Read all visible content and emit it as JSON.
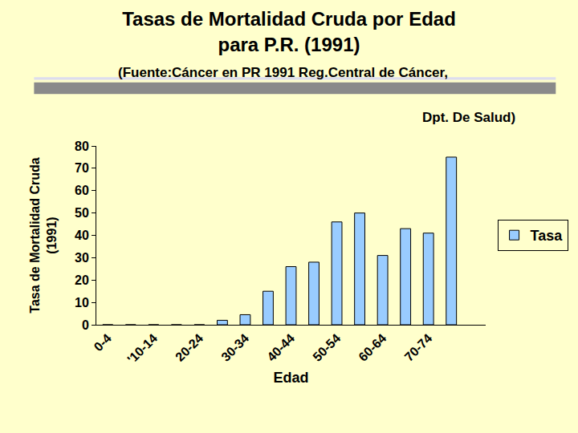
{
  "chart_data": {
    "type": "bar",
    "title": "Tasas de Mortalidad Cruda por Edad\npara P.R. (1991)",
    "subtitle": "(Fuente:Cáncer en PR 1991 Reg.Central de Cáncer,\nDpt. De Salud)",
    "x_label": "Edad",
    "y_label": "Tasa de Mortalidad Cruda\n(1991)",
    "categories": [
      "0-4",
      null,
      "'10-14",
      null,
      "20-24",
      null,
      "30-34",
      null,
      "40-44",
      null,
      "50-54",
      null,
      "60-64",
      null,
      "70-74",
      null,
      null
    ],
    "series": [
      {
        "name": "Tasa",
        "color": "#99CCFF",
        "values": [
          0,
          0,
          0,
          0,
          0,
          2,
          4.5,
          15,
          26,
          28,
          46,
          50,
          31,
          43,
          41,
          75,
          null
        ]
      }
    ],
    "ylim": [
      0,
      80
    ],
    "yticks": [
      0,
      10,
      20,
      30,
      40,
      50,
      60,
      70,
      80
    ],
    "grid": false,
    "legend": "right"
  }
}
